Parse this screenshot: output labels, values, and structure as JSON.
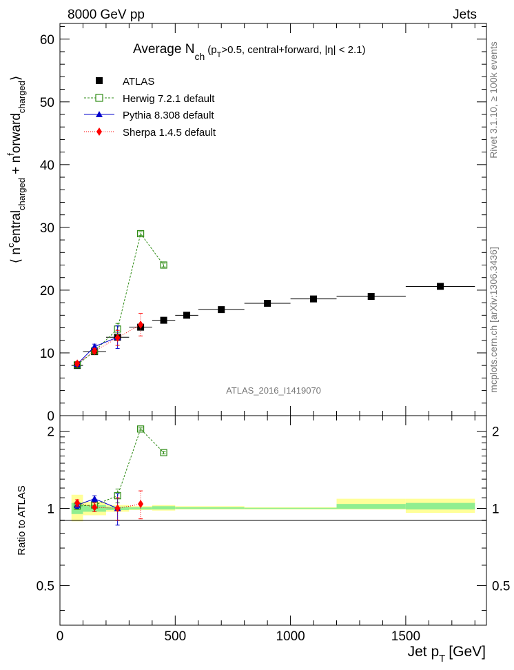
{
  "header": {
    "left": "8000 GeV pp",
    "right": "Jets"
  },
  "side_labels": {
    "rivet": "Rivet 3.1.10, ≥ 100k events",
    "mcplots": "mcplots.cern.ch [arXiv:1306.3436]"
  },
  "colors": {
    "atlas": "#000000",
    "herwig": "#2e8b14",
    "pythia": "#0000cc",
    "sherpa": "#ff0000",
    "band_inner": "#90ee90",
    "band_outer": "#ffff99"
  },
  "chart_data": [
    {
      "type": "scatter",
      "title_main": "Average N",
      "title_sub": "ch",
      "title_rest": "(p",
      "title_rest_sub": "T",
      "title_tail": ">0.5, central+forward, |η| < 2.1)",
      "ylabel": "⟨ n^central_charged + n^forward_charged ⟩",
      "ylabel_parts": [
        "⟨ n",
        "c",
        "entral",
        "charged",
        " + n",
        "f",
        "orward",
        "charged",
        "⟩"
      ],
      "watermark": "ATLAS_2016_I1419070",
      "xlim": [
        0,
        1850
      ],
      "ylim": [
        0,
        62.5
      ],
      "yticks": [
        0,
        10,
        20,
        30,
        40,
        50,
        60
      ],
      "legend_position": "top-left",
      "series": [
        {
          "name": "ATLAS",
          "marker": "filled-square",
          "x": [
            75,
            150,
            250,
            350,
            450,
            550,
            700,
            900,
            1100,
            1350,
            1650
          ],
          "y": [
            8.0,
            10.2,
            12.5,
            14.1,
            15.2,
            16.0,
            16.9,
            17.9,
            18.6,
            19.0,
            20.6
          ],
          "xerr": [
            25,
            50,
            50,
            50,
            50,
            50,
            100,
            100,
            100,
            150,
            150
          ]
        },
        {
          "name": "Herwig 7.2.1 default",
          "marker": "open-square",
          "line": "dashed",
          "x": [
            75,
            150,
            250,
            350,
            450
          ],
          "y": [
            8.1,
            10.3,
            13.8,
            29.0,
            24.0
          ],
          "yerr": [
            0.3,
            0.3,
            0.9,
            0.3,
            0.3
          ]
        },
        {
          "name": "Pythia 8.308 default",
          "marker": "filled-triangle",
          "line": "solid",
          "x": [
            75,
            150,
            250
          ],
          "y": [
            8.2,
            11.0,
            12.5
          ],
          "yerr": [
            0.3,
            0.4,
            1.8
          ]
        },
        {
          "name": "Sherpa 1.4.5 default",
          "marker": "filled-diamond",
          "line": "dotted",
          "x": [
            75,
            150,
            250,
            350
          ],
          "y": [
            8.3,
            10.3,
            12.4,
            14.5
          ],
          "yerr": [
            0.3,
            0.4,
            1.2,
            1.8
          ]
        }
      ]
    },
    {
      "type": "scatter",
      "xlabel": "Jet p",
      "xlabel_sub": "T",
      "xlabel_unit": "[GeV]",
      "ylabel": "Ratio to ATLAS",
      "xlim": [
        0,
        1850
      ],
      "ylim": [
        0.35,
        2.3
      ],
      "yticks": [
        0.5,
        1,
        2
      ],
      "ytick_labels": [
        "0.5",
        "1",
        "2"
      ],
      "xticks": [
        0,
        500,
        1000,
        1500
      ],
      "xtick_labels": [
        "0",
        "500",
        "1000",
        "1500"
      ],
      "bands": [
        {
          "x": [
            50,
            100
          ],
          "inner": [
            0.95,
            1.05
          ],
          "outer": [
            0.89,
            1.13
          ]
        },
        {
          "x": [
            100,
            200
          ],
          "inner": [
            0.97,
            1.03
          ],
          "outer": [
            0.94,
            1.06
          ]
        },
        {
          "x": [
            200,
            300
          ],
          "inner": [
            0.985,
            1.015
          ],
          "outer": [
            0.97,
            1.03
          ]
        },
        {
          "x": [
            300,
            400
          ],
          "inner": [
            0.99,
            1.01
          ],
          "outer": [
            0.985,
            1.02
          ]
        },
        {
          "x": [
            400,
            500
          ],
          "inner": [
            0.99,
            1.02
          ],
          "outer": [
            0.98,
            1.03
          ]
        },
        {
          "x": [
            500,
            800
          ],
          "inner": [
            0.995,
            1.01
          ],
          "outer": [
            0.99,
            1.02
          ]
        },
        {
          "x": [
            800,
            1200
          ],
          "inner": [
            0.995,
            1.005
          ],
          "outer": [
            0.99,
            1.01
          ]
        },
        {
          "x": [
            1200,
            1500
          ],
          "inner": [
            0.995,
            1.04
          ],
          "outer": [
            0.99,
            1.09
          ]
        },
        {
          "x": [
            1500,
            1800
          ],
          "inner": [
            0.99,
            1.05
          ],
          "outer": [
            0.96,
            1.09
          ]
        }
      ],
      "series": [
        {
          "name": "Herwig 7.2.1 default",
          "x": [
            75,
            150,
            250,
            350,
            450
          ],
          "y": [
            1.02,
            1.03,
            1.12,
            2.04,
            1.65
          ],
          "yerr": [
            0.03,
            0.03,
            0.07,
            0.02,
            0.02
          ]
        },
        {
          "name": "Pythia 8.308 default",
          "x": [
            75,
            150,
            250
          ],
          "y": [
            1.03,
            1.09,
            1.0
          ],
          "yerr": [
            0.03,
            0.03,
            0.14
          ]
        },
        {
          "name": "Sherpa 1.4.5 default",
          "x": [
            75,
            150,
            250,
            350
          ],
          "y": [
            1.05,
            1.01,
            1.0,
            1.04
          ],
          "yerr": [
            0.03,
            0.04,
            0.1,
            0.13
          ]
        }
      ]
    }
  ]
}
